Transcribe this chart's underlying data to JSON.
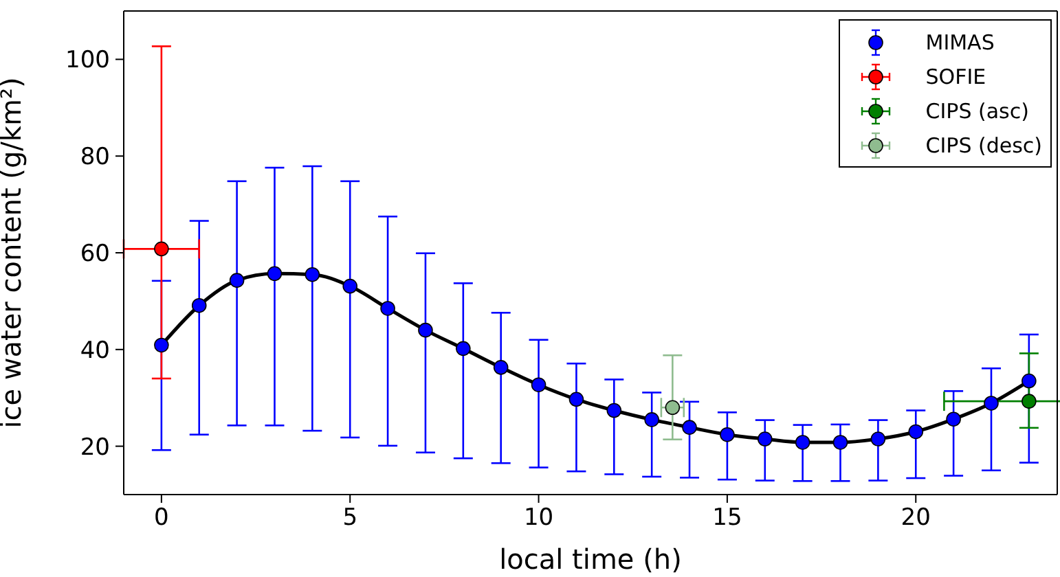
{
  "chart_data": {
    "type": "scatter",
    "xlabel": "local time (h)",
    "ylabel": "ice water content (g/km²)",
    "xlim": [
      -1,
      23.75
    ],
    "ylim": [
      10,
      110
    ],
    "xticks": [
      0,
      5,
      10,
      15,
      20
    ],
    "yticks": [
      20,
      40,
      60,
      80,
      100
    ],
    "grid": false,
    "legend": "top right",
    "marker": "circle",
    "series": [
      {
        "name": "MIMAS",
        "color": "#0000ff",
        "x": [
          0,
          1,
          2,
          3,
          4,
          5,
          6,
          7,
          8,
          9,
          10,
          11,
          12,
          13,
          14,
          15,
          16,
          17,
          18,
          19,
          20,
          21,
          22,
          23
        ],
        "values": [
          40.9,
          49.1,
          54.3,
          55.7,
          55.5,
          53.1,
          48.5,
          44.0,
          40.2,
          36.3,
          32.7,
          29.7,
          27.4,
          25.5,
          23.9,
          22.4,
          21.5,
          20.8,
          20.8,
          21.5,
          23.0,
          25.6,
          28.9,
          33.5
        ],
        "errors": [
          [
            19.2,
            54.2
          ],
          [
            22.4,
            66.6
          ],
          [
            24.3,
            74.8
          ],
          [
            24.3,
            77.6
          ],
          [
            23.2,
            77.9
          ],
          [
            21.8,
            74.8
          ],
          [
            20.1,
            67.5
          ],
          [
            18.7,
            59.9
          ],
          [
            17.5,
            53.7
          ],
          [
            16.5,
            47.6
          ],
          [
            15.6,
            42.0
          ],
          [
            14.8,
            37.1
          ],
          [
            14.2,
            33.8
          ],
          [
            13.7,
            31.1
          ],
          [
            13.5,
            29.2
          ],
          [
            13.1,
            27.0
          ],
          [
            12.9,
            25.4
          ],
          [
            12.8,
            24.4
          ],
          [
            12.8,
            24.5
          ],
          [
            12.9,
            25.4
          ],
          [
            13.4,
            27.4
          ],
          [
            13.9,
            31.4
          ],
          [
            15.0,
            36.1
          ],
          [
            16.6,
            43.1
          ]
        ]
      },
      {
        "name": "SOFIE",
        "color": "#ff0000",
        "x": [
          0
        ],
        "values": [
          60.8
        ],
        "errors": [
          [
            34.0,
            102.7
          ]
        ],
        "xerrors": [
          1
        ]
      },
      {
        "name": "CIPS (asc)",
        "color": "#007f00",
        "x": [
          23
        ],
        "values": [
          29.3
        ],
        "errors": [
          [
            23.8,
            39.2
          ]
        ],
        "xerrors": [
          2.25
        ]
      },
      {
        "name": "CIPS (desc)",
        "color": "#8fbc8f",
        "x": [
          13.55
        ],
        "values": [
          28.0
        ],
        "errors": [
          [
            21.4,
            38.8
          ]
        ],
        "xerrors": [
          0.3
        ]
      },
      {
        "type": "line",
        "color": "#000000",
        "marker": "none",
        "line_style": "solid",
        "x": [
          0,
          1,
          2,
          3,
          4,
          5,
          6,
          7,
          8,
          9,
          10,
          11,
          12,
          13,
          14,
          15,
          16,
          17,
          18,
          19,
          20,
          21,
          22,
          23
        ],
        "values": [
          40.9,
          49.1,
          54.3,
          55.7,
          55.5,
          53.1,
          48.5,
          44.0,
          40.2,
          36.3,
          32.7,
          29.7,
          27.4,
          25.5,
          23.9,
          22.4,
          21.5,
          20.8,
          20.8,
          21.5,
          23.0,
          25.6,
          28.9,
          33.5
        ]
      }
    ]
  }
}
